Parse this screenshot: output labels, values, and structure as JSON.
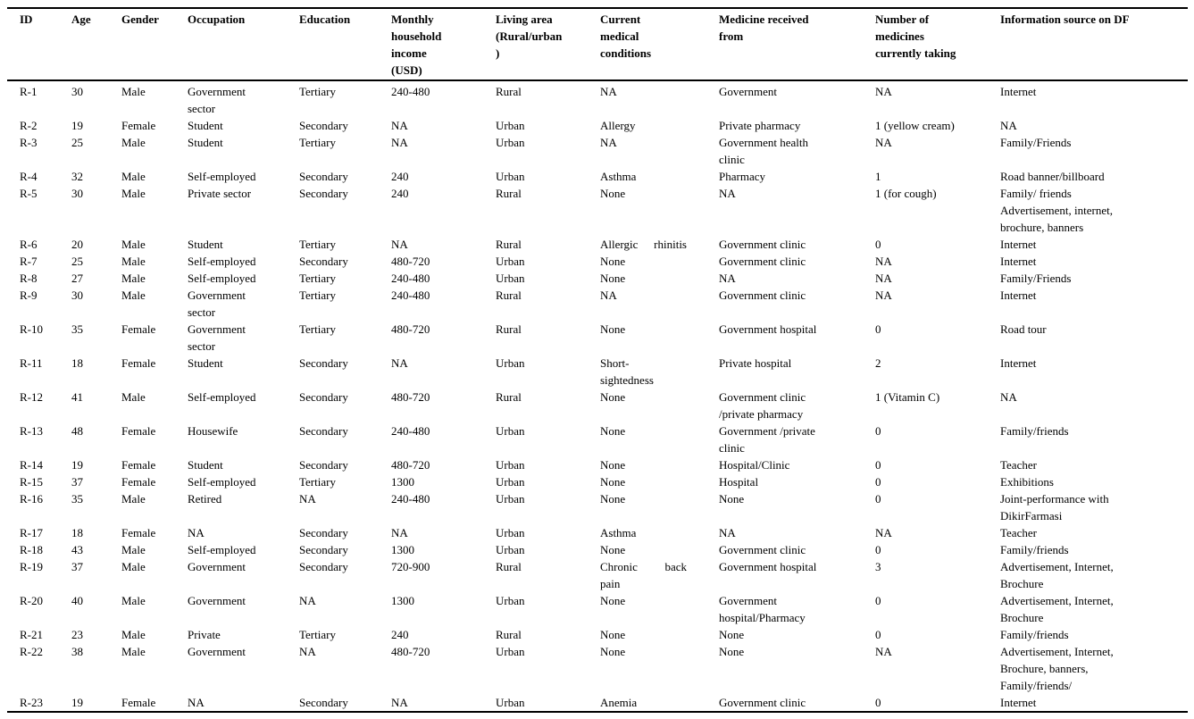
{
  "colors": {
    "text": "#000000",
    "background": "#ffffff",
    "rule": "#000000"
  },
  "table": {
    "columns": [
      {
        "key": "id",
        "label": "ID"
      },
      {
        "key": "age",
        "label": "Age"
      },
      {
        "key": "gender",
        "label": "Gender"
      },
      {
        "key": "occupation",
        "label": "Occupation"
      },
      {
        "key": "education",
        "label": "Education"
      },
      {
        "key": "income",
        "label": "Monthly\nhousehold\nincome\n(USD)"
      },
      {
        "key": "area",
        "label": "Living area\n(Rural/urban\n)"
      },
      {
        "key": "conditions",
        "label": "Current\nmedical\nconditions"
      },
      {
        "key": "medicine_from",
        "label": "Medicine received\nfrom"
      },
      {
        "key": "num_medicines",
        "label": "Number of\nmedicines\ncurrently taking"
      },
      {
        "key": "info_source",
        "label": "Information source on DF"
      }
    ],
    "rows": [
      {
        "id": "R-1",
        "age": "30",
        "gender": "Male",
        "occupation": "Government\nsector",
        "education": "Tertiary",
        "income": "240-480",
        "area": "Rural",
        "conditions": "NA",
        "medicine_from": "Government",
        "num_medicines": "NA",
        "info_source": "Internet"
      },
      {
        "id": "R-2",
        "age": "19",
        "gender": "Female",
        "occupation": "Student",
        "education": "Secondary",
        "income": "NA",
        "area": "Urban",
        "conditions": "Allergy",
        "medicine_from": "Private pharmacy",
        "num_medicines": "1 (yellow cream)",
        "info_source": "NA"
      },
      {
        "id": "R-3",
        "age": "25",
        "gender": "Male",
        "occupation": "Student",
        "education": "Tertiary",
        "income": "NA",
        "area": "Urban",
        "conditions": "NA",
        "medicine_from": "Government health\nclinic",
        "num_medicines": "NA",
        "info_source": "Family/Friends"
      },
      {
        "id": "R-4",
        "age": "32",
        "gender": "Male",
        "occupation": "Self-employed",
        "education": "Secondary",
        "income": "240",
        "area": "Urban",
        "conditions": "Asthma",
        "medicine_from": "Pharmacy",
        "num_medicines": "1",
        "info_source": "Road banner/billboard"
      },
      {
        "id": "R-5",
        "age": "30",
        "gender": "Male",
        "occupation": "Private sector",
        "education": "Secondary",
        "income": "240",
        "area": "Rural",
        "conditions": "None",
        "medicine_from": "NA",
        "num_medicines": "1 (for cough)",
        "info_source": "Family/ friends\nAdvertisement, internet,\nbrochure, banners"
      },
      {
        "id": "R-6",
        "age": "20",
        "gender": "Male",
        "occupation": "Student",
        "education": "Tertiary",
        "income": "NA",
        "area": "Rural",
        "conditions": "Allergic rhinitis",
        "medicine_from": "Government clinic",
        "num_medicines": "0",
        "info_source": "Internet"
      },
      {
        "id": "R-7",
        "age": "25",
        "gender": "Male",
        "occupation": "Self-employed",
        "education": "Secondary",
        "income": "480-720",
        "area": "Urban",
        "conditions": "None",
        "medicine_from": "Government clinic",
        "num_medicines": "NA",
        "info_source": "Internet"
      },
      {
        "id": "R-8",
        "age": "27",
        "gender": "Male",
        "occupation": "Self-employed",
        "education": "Tertiary",
        "income": "240-480",
        "area": "Urban",
        "conditions": "None",
        "medicine_from": "NA",
        "num_medicines": "NA",
        "info_source": "Family/Friends"
      },
      {
        "id": "R-9",
        "age": "30",
        "gender": "Male",
        "occupation": "Government\nsector",
        "education": "Tertiary",
        "income": "240-480",
        "area": "Rural",
        "conditions": "NA",
        "medicine_from": "Government clinic",
        "num_medicines": "NA",
        "info_source": "Internet"
      },
      {
        "id": "R-10",
        "age": "35",
        "gender": "Female",
        "occupation": "Government\nsector",
        "education": "Tertiary",
        "income": "480-720",
        "area": "Rural",
        "conditions": "None",
        "medicine_from": "Government hospital",
        "num_medicines": "0",
        "info_source": "Road tour"
      },
      {
        "id": "R-11",
        "age": "18",
        "gender": "Female",
        "occupation": "Student",
        "education": "Secondary",
        "income": "NA",
        "area": "Urban",
        "conditions": "Short-\nsightedness",
        "medicine_from": "Private hospital",
        "num_medicines": "2",
        "info_source": "Internet"
      },
      {
        "id": "R-12",
        "age": "41",
        "gender": "Male",
        "occupation": "Self-employed",
        "education": "Secondary",
        "income": "480-720",
        "area": "Rural",
        "conditions": "None",
        "medicine_from": "Government clinic\n/private pharmacy",
        "num_medicines": "1 (Vitamin C)",
        "info_source": "NA"
      },
      {
        "id": "R-13",
        "age": "48",
        "gender": "Female",
        "occupation": "Housewife",
        "education": "Secondary",
        "income": "240-480",
        "area": "Urban",
        "conditions": "None",
        "medicine_from": "Government /private\nclinic",
        "num_medicines": "0",
        "info_source": "Family/friends"
      },
      {
        "id": "R-14",
        "age": "19",
        "gender": "Female",
        "occupation": "Student",
        "education": "Secondary",
        "income": "480-720",
        "area": "Urban",
        "conditions": "None",
        "medicine_from": "Hospital/Clinic",
        "num_medicines": "0",
        "info_source": "Teacher"
      },
      {
        "id": "R-15",
        "age": "37",
        "gender": "Female",
        "occupation": "Self-employed",
        "education": "Tertiary",
        "income": "1300",
        "area": "Urban",
        "conditions": "None",
        "medicine_from": "Hospital",
        "num_medicines": "0",
        "info_source": "Exhibitions"
      },
      {
        "id": "R-16",
        "age": "35",
        "gender": "Male",
        "occupation": "Retired",
        "education": "NA",
        "income": "240-480",
        "area": "Urban",
        "conditions": "None",
        "medicine_from": "None",
        "num_medicines": "0",
        "info_source": "Joint-performance with\nDikirFarmasi"
      },
      {
        "id": "R-17",
        "age": "18",
        "gender": "Female",
        "occupation": "NA",
        "education": "Secondary",
        "income": "NA",
        "area": "Urban",
        "conditions": "Asthma",
        "medicine_from": "NA",
        "num_medicines": "NA",
        "info_source": "Teacher"
      },
      {
        "id": "R-18",
        "age": "43",
        "gender": "Male",
        "occupation": "Self-employed",
        "education": "Secondary",
        "income": "1300",
        "area": "Urban",
        "conditions": "None",
        "medicine_from": "Government clinic",
        "num_medicines": "0",
        "info_source": "Family/friends"
      },
      {
        "id": "R-19",
        "age": "37",
        "gender": "Male",
        "occupation": "Government",
        "education": "Secondary",
        "income": "720-900",
        "area": "Rural",
        "conditions": "Chronic back\npain",
        "medicine_from": "Government hospital",
        "num_medicines": "3",
        "info_source": "Advertisement, Internet,\nBrochure"
      },
      {
        "id": "R-20",
        "age": "40",
        "gender": "Male",
        "occupation": "Government",
        "education": "NA",
        "income": "1300",
        "area": "Urban",
        "conditions": "None",
        "medicine_from": "Government\nhospital/Pharmacy",
        "num_medicines": "0",
        "info_source": "Advertisement, Internet,\nBrochure"
      },
      {
        "id": "R-21",
        "age": "23",
        "gender": "Male",
        "occupation": "Private",
        "education": "Tertiary",
        "income": "240",
        "area": "Rural",
        "conditions": "None",
        "medicine_from": "None",
        "num_medicines": "0",
        "info_source": "Family/friends"
      },
      {
        "id": "R-22",
        "age": "38",
        "gender": "Male",
        "occupation": "Government",
        "education": "NA",
        "income": "480-720",
        "area": "Urban",
        "conditions": "None",
        "medicine_from": "None",
        "num_medicines": "NA",
        "info_source": "Advertisement, Internet,\nBrochure, banners,\nFamily/friends/"
      },
      {
        "id": "R-23",
        "age": "19",
        "gender": "Female",
        "occupation": "NA",
        "education": "Secondary",
        "income": "NA",
        "area": "Urban",
        "conditions": "Anemia",
        "medicine_from": "Government clinic",
        "num_medicines": "0",
        "info_source": "Internet"
      }
    ]
  }
}
